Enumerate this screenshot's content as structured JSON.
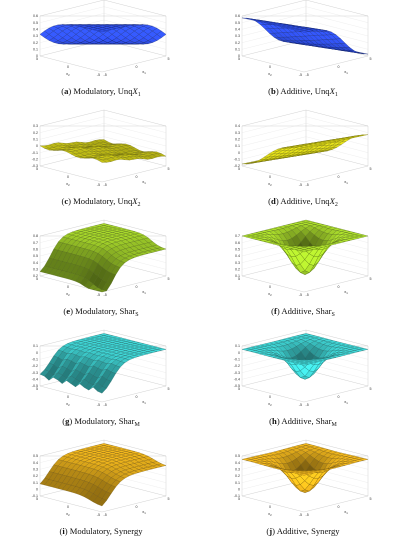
{
  "panels": [
    {
      "letter": "a",
      "method": "Modulatory",
      "measure": "Unq",
      "measure_var": "X",
      "measure_sub": "1",
      "color": "#2f4fe6",
      "shape": "mod_unq1",
      "zticks": [
        "0.6",
        "0.5",
        "0.4",
        "0.3",
        "0.2",
        "0.1",
        "0"
      ]
    },
    {
      "letter": "b",
      "method": "Additive",
      "measure": "Unq",
      "measure_var": "X",
      "measure_sub": "1",
      "color": "#2f4fe6",
      "shape": "add_unq1",
      "zticks": [
        "0.6",
        "0.5",
        "0.4",
        "0.3",
        "0.2",
        "0.1",
        "0"
      ]
    },
    {
      "letter": "c",
      "method": "Modulatory",
      "measure": "Unq",
      "measure_var": "X",
      "measure_sub": "2",
      "color": "#e7e31a",
      "shape": "mod_unq2",
      "zticks": [
        "0.3",
        "0.2",
        "0.1",
        "0",
        "-0.1",
        "-0.2",
        "-0.3"
      ]
    },
    {
      "letter": "d",
      "method": "Additive",
      "measure": "Unq",
      "measure_var": "X",
      "measure_sub": "2",
      "color": "#e7e31a",
      "shape": "add_unq2",
      "zticks": [
        "0.4",
        "0.3",
        "0.2",
        "0.1",
        "0",
        "-0.1",
        "-0.2"
      ]
    },
    {
      "letter": "e",
      "method": "Modulatory",
      "measure": "Shar",
      "measure_var": "",
      "measure_sub": "S",
      "color": "#a6d62b",
      "shape": "mod_shs",
      "zticks": [
        "0.8",
        "0.7",
        "0.6",
        "0.5",
        "0.4",
        "0.3",
        "0.2"
      ]
    },
    {
      "letter": "f",
      "method": "Additive",
      "measure": "Shar",
      "measure_var": "",
      "measure_sub": "S",
      "color": "#a6d62b",
      "shape": "add_shs",
      "zticks": [
        "0.7",
        "0.6",
        "0.5",
        "0.4",
        "0.3",
        "0.2",
        "0.1"
      ]
    },
    {
      "letter": "g",
      "method": "Modulatory",
      "measure": "Shar",
      "measure_var": "",
      "measure_sub": "M",
      "color": "#3fd4d4",
      "shape": "mod_shm",
      "zticks": [
        "0.1",
        "0",
        "-0.1",
        "-0.2",
        "-0.3",
        "-0.4",
        "-0.5"
      ]
    },
    {
      "letter": "h",
      "method": "Additive",
      "measure": "Shar",
      "measure_var": "",
      "measure_sub": "M",
      "color": "#3fd4d4",
      "shape": "add_shm",
      "zticks": [
        "0.1",
        "0",
        "-0.1",
        "-0.2",
        "-0.3",
        "-0.4",
        "-0.5"
      ]
    },
    {
      "letter": "i",
      "method": "Modulatory",
      "measure": "Synergy",
      "measure_var": "",
      "measure_sub": "",
      "color": "#efb51c",
      "shape": "mod_syn",
      "zticks": [
        "0.5",
        "0.4",
        "0.3",
        "0.2",
        "0.1",
        "0",
        "-0.1"
      ]
    },
    {
      "letter": "j",
      "method": "Additive",
      "measure": "Synergy",
      "measure_var": "",
      "measure_sub": "",
      "color": "#efb51c",
      "shape": "add_syn",
      "zticks": [
        "0.5",
        "0.4",
        "0.3",
        "0.2",
        "0.1",
        "0",
        "-0.1"
      ]
    }
  ],
  "axes": {
    "x1_label": "x",
    "x1_sub": "1",
    "x2_label": "x",
    "x2_sub": "2",
    "tick_values": [
      "-5",
      "0",
      "5"
    ]
  }
}
